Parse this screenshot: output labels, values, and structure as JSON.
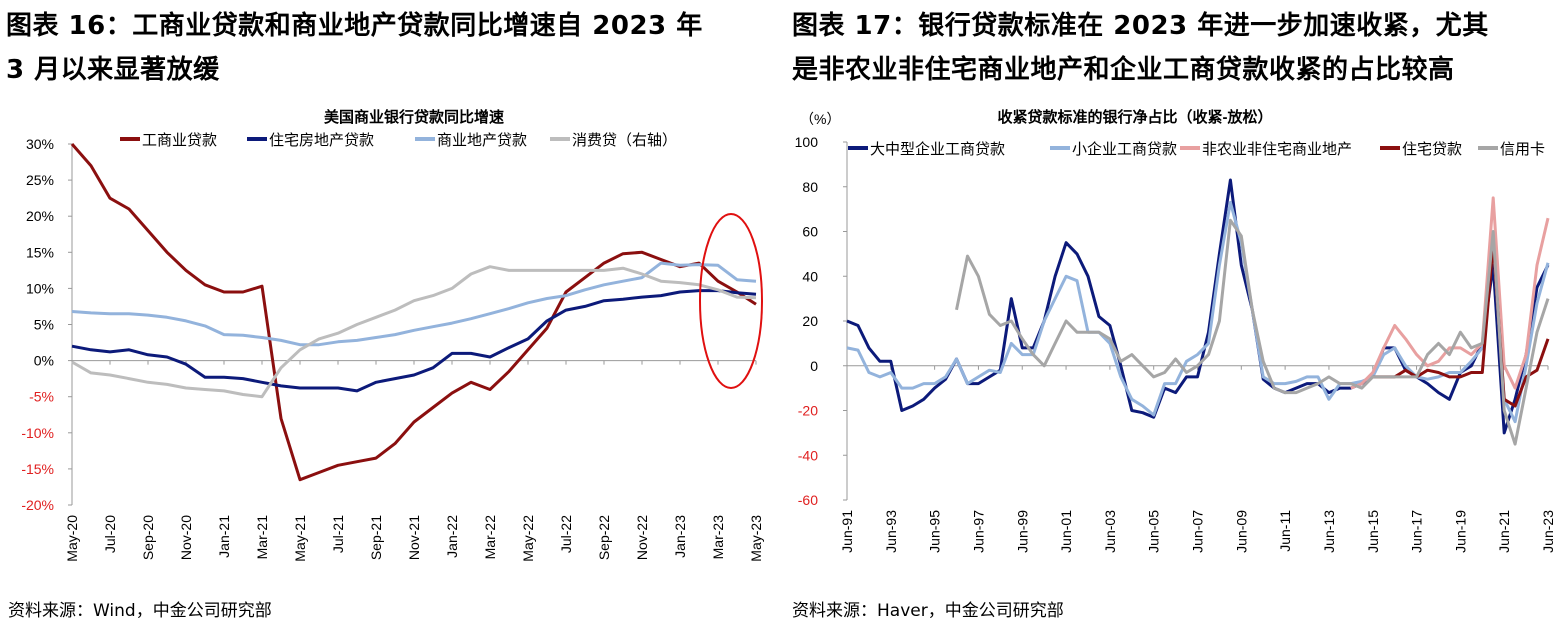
{
  "figures": [
    {
      "title_line1": "图表 16：工商业贷款和商业地产贷款同比增速自 2023 年",
      "title_line2": "3 月以来显著放缓",
      "source": "资料来源：Wind，中金公司研究部"
    },
    {
      "title_line1": "图表 17：银行贷款标准在 2023 年进一步加速收紧，尤其",
      "title_line2": "是非农业非住宅商业地产和企业工商贷款收紧的占比较高",
      "source": "资料来源：Haver，中金公司研究部"
    }
  ],
  "chart_data": [
    {
      "type": "line",
      "title": "美国商业银行贷款同比增速",
      "x_note": "monthly, May-20 to May-23",
      "xticks": [
        "May-20",
        "Jul-20",
        "Sep-20",
        "Nov-20",
        "Jan-21",
        "Mar-21",
        "May-21",
        "Jul-21",
        "Sep-21",
        "Nov-21",
        "Jan-22",
        "Mar-22",
        "May-22",
        "Jul-22",
        "Sep-22",
        "Nov-22",
        "Jan-23",
        "Mar-23",
        "May-23"
      ],
      "yticks": [
        "30%",
        "25%",
        "20%",
        "15%",
        "10%",
        "5%",
        "0%",
        "-5%",
        "-10%",
        "-15%",
        "-20%"
      ],
      "ylim": [
        -20,
        30
      ],
      "annotation": "red ellipse highlighting Mar-23 to May-23",
      "series": [
        {
          "name": "工商业贷款",
          "color": "#8b0f0f",
          "values": [
            30,
            27,
            22.5,
            21,
            18,
            15,
            12.5,
            10.5,
            9.5,
            9.5,
            10.3,
            -8,
            -16.5,
            -15.5,
            -14.5,
            -14,
            -13.5,
            -11.5,
            -8.5,
            -6.5,
            -4.5,
            -3,
            -4,
            -1.5,
            1.5,
            4.5,
            9.5,
            11.5,
            13.5,
            14.8,
            15,
            14,
            13,
            13.5,
            11,
            9.5,
            7.8
          ]
        },
        {
          "name": "住宅房地产贷款",
          "color": "#0c1a7a",
          "values": [
            2,
            1.5,
            1.2,
            1.5,
            0.8,
            0.5,
            -0.5,
            -2.3,
            -2.3,
            -2.5,
            -3,
            -3.5,
            -3.8,
            -3.8,
            -3.8,
            -4.2,
            -3,
            -2.5,
            -2,
            -1,
            1,
            1,
            0.5,
            1.8,
            3,
            5.5,
            7,
            7.5,
            8.3,
            8.5,
            8.8,
            9,
            9.5,
            9.7,
            9.7,
            9.4,
            9.2
          ]
        },
        {
          "name": "商业地产贷款",
          "color": "#93b3dc",
          "values": [
            6.8,
            6.6,
            6.5,
            6.5,
            6.3,
            6,
            5.5,
            4.8,
            3.6,
            3.5,
            3.2,
            2.8,
            2.2,
            2.2,
            2.6,
            2.8,
            3.2,
            3.6,
            4.2,
            4.7,
            5.2,
            5.8,
            6.5,
            7.2,
            8,
            8.6,
            9,
            9.8,
            10.5,
            11,
            11.5,
            13.5,
            13.2,
            13.3,
            13.2,
            11.2,
            11
          ]
        },
        {
          "name": "消费贷（右轴）",
          "color": "#bdbdbd",
          "values": [
            -0.2,
            -1.7,
            -2,
            -2.5,
            -3,
            -3.3,
            -3.8,
            -4,
            -4.2,
            -4.7,
            -5,
            -1,
            1.5,
            3,
            3.8,
            5,
            6,
            7,
            8.3,
            9,
            10,
            12,
            13,
            12.5,
            12.5,
            12.5,
            12.5,
            12.5,
            12.5,
            12.8,
            12,
            11,
            10.8,
            10.5,
            9.8,
            8.8,
            8.7
          ]
        }
      ]
    },
    {
      "type": "line",
      "title": "收紧贷款标准的银行净占比（收紧-放松）",
      "unit": "（%）",
      "x_note": "semiannual, Jun-91 to Jun-23",
      "xticks": [
        "Jun-91",
        "Jun-93",
        "Jun-95",
        "Jun-97",
        "Jun-99",
        "Jun-01",
        "Jun-03",
        "Jun-05",
        "Jun-07",
        "Jun-09",
        "Jun-11",
        "Jun-13",
        "Jun-15",
        "Jun-17",
        "Jun-19",
        "Jun-21",
        "Jun-23"
      ],
      "yticks": [
        "100",
        "80",
        "60",
        "40",
        "20",
        "0",
        "-20",
        "-40",
        "-60"
      ],
      "ylim": [
        -60,
        100
      ],
      "series": [
        {
          "name": "大中型企业工商贷款",
          "color": "#0c1a7a",
          "values": [
            20,
            18,
            8,
            2,
            2,
            -20,
            -18,
            -15,
            -10,
            -6,
            3,
            -8,
            -8,
            -5,
            -2,
            30,
            8,
            8,
            20,
            40,
            55,
            50,
            40,
            22,
            18,
            0,
            -20,
            -21,
            -23,
            -10,
            -12,
            -5,
            -5,
            15,
            50,
            83,
            45,
            25,
            -6,
            -10,
            -12,
            -10,
            -8,
            -8,
            -12,
            -10,
            -10,
            -8,
            -5,
            8,
            8,
            -2,
            -5,
            -8,
            -12,
            -15,
            -3,
            0,
            10,
            45,
            -30,
            -15,
            5,
            35,
            45
          ]
        },
        {
          "name": "小企业工商贷款",
          "color": "#93b3dc",
          "values": [
            8,
            7,
            -3,
            -5,
            -3,
            -10,
            -10,
            -8,
            -8,
            -5,
            3,
            -8,
            -5,
            -2,
            -3,
            10,
            5,
            5,
            20,
            30,
            40,
            38,
            15,
            15,
            10,
            -5,
            -15,
            -18,
            -22,
            -8,
            -8,
            2,
            5,
            10,
            45,
            73,
            55,
            25,
            -5,
            -8,
            -8,
            -7,
            -5,
            -5,
            -15,
            -8,
            -8,
            -7,
            -5,
            5,
            8,
            0,
            -5,
            -6,
            -5,
            -3,
            -3,
            2,
            8,
            55,
            -15,
            -25,
            0,
            28,
            46
          ]
        },
        {
          "name": "非农业非住宅商业地产",
          "color": "#e8a0a0",
          "values": [
            null,
            null,
            null,
            null,
            null,
            null,
            null,
            null,
            null,
            null,
            null,
            null,
            null,
            null,
            null,
            null,
            null,
            null,
            null,
            null,
            null,
            null,
            null,
            null,
            null,
            null,
            null,
            null,
            null,
            null,
            null,
            null,
            null,
            null,
            null,
            null,
            null,
            null,
            null,
            null,
            null,
            null,
            null,
            null,
            null,
            null,
            -10,
            -8,
            -3,
            8,
            18,
            12,
            5,
            0,
            2,
            8,
            8,
            5,
            10,
            75,
            0,
            -10,
            5,
            45,
            66
          ]
        },
        {
          "name": "住宅贷款",
          "color": "#8b0f0f",
          "values": [
            null,
            null,
            null,
            null,
            null,
            null,
            null,
            null,
            null,
            null,
            null,
            null,
            null,
            null,
            null,
            null,
            null,
            null,
            null,
            null,
            null,
            null,
            null,
            null,
            null,
            null,
            null,
            null,
            null,
            null,
            null,
            null,
            null,
            null,
            null,
            null,
            null,
            null,
            null,
            null,
            null,
            null,
            null,
            null,
            null,
            null,
            null,
            null,
            -5,
            -5,
            -5,
            -2,
            -5,
            -2,
            -3,
            -5,
            -5,
            -3,
            -3,
            55,
            -15,
            -18,
            -5,
            -2,
            12
          ]
        },
        {
          "name": "信用卡",
          "color": "#a6a6a6",
          "values": [
            null,
            null,
            null,
            null,
            null,
            null,
            null,
            null,
            null,
            null,
            25,
            49,
            40,
            23,
            18,
            20,
            12,
            5,
            0,
            10,
            20,
            15,
            15,
            15,
            12,
            2,
            5,
            0,
            -5,
            -3,
            3,
            -3,
            0,
            5,
            20,
            65,
            58,
            25,
            2,
            -10,
            -12,
            -12,
            -10,
            -8,
            -5,
            -8,
            -8,
            -10,
            -5,
            -5,
            -5,
            -5,
            -5,
            5,
            10,
            5,
            15,
            8,
            10,
            60,
            -20,
            -35,
            -10,
            15,
            30
          ]
        }
      ]
    }
  ]
}
